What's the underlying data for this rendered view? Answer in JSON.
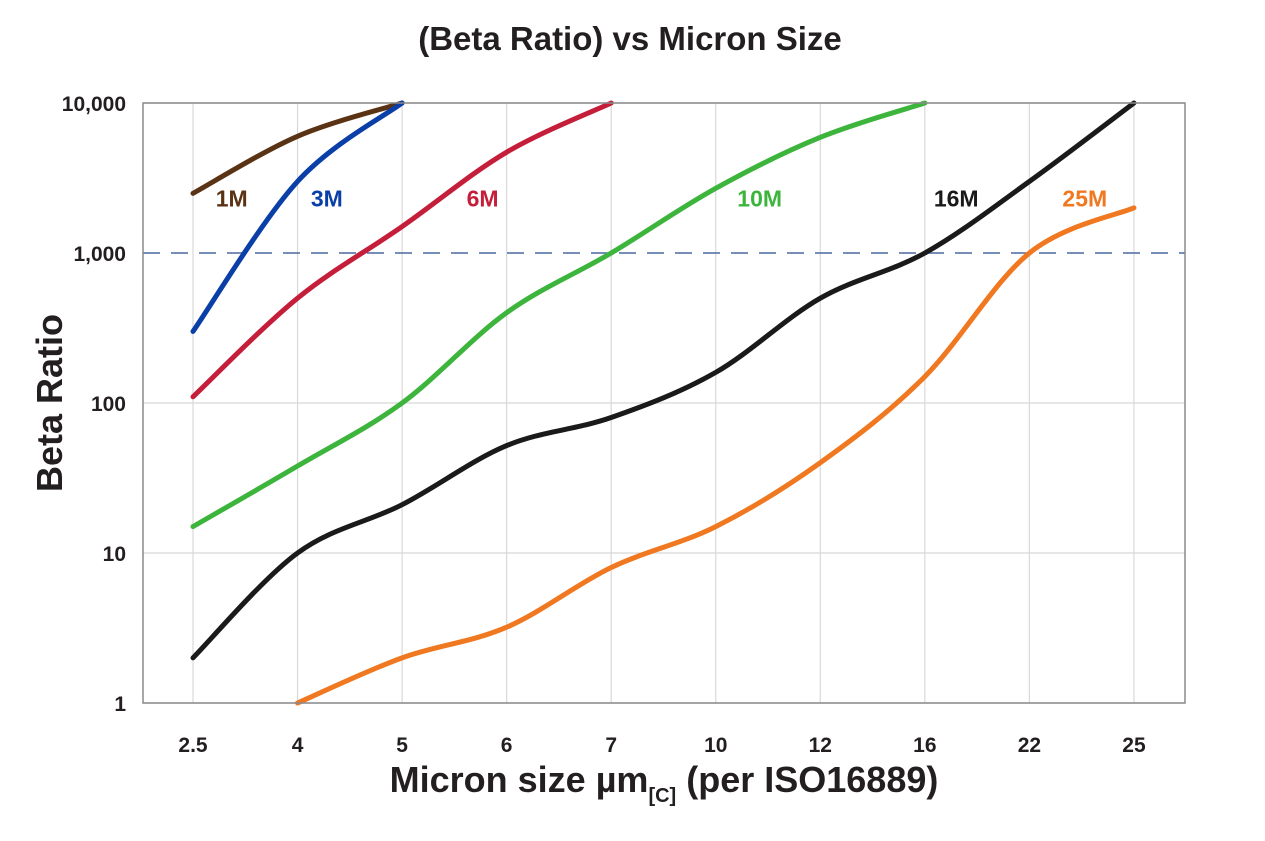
{
  "chart_data": {
    "type": "line",
    "title": "(Beta Ratio) vs Micron Size",
    "xlabel": "Micron size µm",
    "xlabel_subscript": "[C]",
    "xlabel_suffix": "(per ISO16889)",
    "ylabel": "Beta Ratio",
    "yscale": "log",
    "ylim": [
      1,
      10000
    ],
    "yticks": [
      1,
      10,
      100,
      1000,
      10000
    ],
    "ytick_labels": [
      "1",
      "10",
      "100",
      "1,000",
      "10,000"
    ],
    "categories": [
      "2.5",
      "4",
      "5",
      "6",
      "7",
      "10",
      "12",
      "16",
      "22",
      "25"
    ],
    "grid": true,
    "reference_line": {
      "value": 1000,
      "style": "dashed",
      "color": "#4a6aa0"
    },
    "series": [
      {
        "name": "1M",
        "color": "#5a3214",
        "values": [
          2500,
          6000,
          10000,
          null,
          null,
          null,
          null,
          null,
          null,
          null
        ],
        "label_at": [
          0.37,
          2300
        ]
      },
      {
        "name": "3M",
        "color": "#0b3fa8",
        "values": [
          300,
          3000,
          10000,
          null,
          null,
          null,
          null,
          null,
          null,
          null
        ],
        "label_at": [
          1.28,
          2300
        ]
      },
      {
        "name": "6M",
        "color": "#c41e3a",
        "values": [
          110,
          500,
          1500,
          4700,
          10000,
          null,
          null,
          null,
          null,
          null
        ],
        "label_at": [
          2.77,
          2300
        ]
      },
      {
        "name": "10M",
        "color": "#3db53d",
        "values": [
          15,
          38,
          100,
          400,
          1000,
          2700,
          5900,
          10000,
          null,
          null
        ],
        "label_at": [
          5.42,
          2300
        ]
      },
      {
        "name": "16M",
        "color": "#1a1a1a",
        "values": [
          2,
          10,
          21,
          52,
          80,
          160,
          500,
          1000,
          3000,
          10000
        ],
        "label_at": [
          7.3,
          2300
        ]
      },
      {
        "name": "25M",
        "color": "#f07820",
        "values": [
          null,
          1,
          2,
          3.2,
          8,
          15,
          40,
          150,
          1000,
          2000
        ],
        "label_at": [
          8.53,
          2300
        ]
      }
    ]
  }
}
